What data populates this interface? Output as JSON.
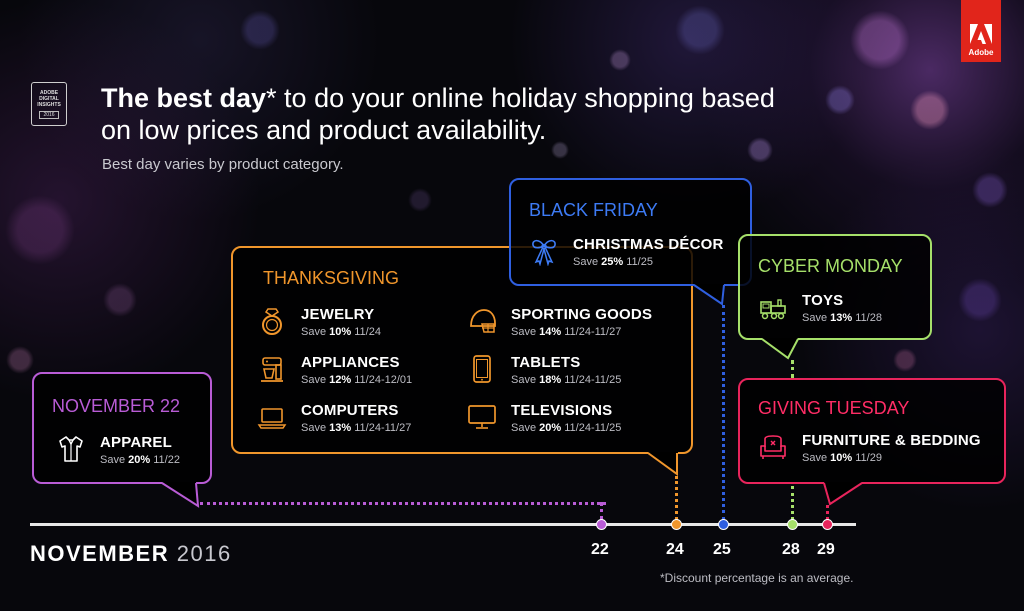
{
  "brand": {
    "logo_text": "Adobe",
    "accent": "#e1251b",
    "badge_lines": [
      "ADOBE",
      "DIGITAL",
      "INSIGHTS"
    ],
    "badge_year": "2016"
  },
  "headline": {
    "bold": "The best day",
    "rest_line1": "* to do your online holiday shopping based",
    "line2": "on low prices and product availability."
  },
  "subhead": "Best day varies by product category.",
  "callouts": {
    "november22": {
      "title": "NOVEMBER 22",
      "color": "#b95cd6",
      "items": [
        {
          "name": "APPAREL",
          "save_label": "Save",
          "pct": "20%",
          "dates": "11/22",
          "icon": "shirt-icon"
        }
      ]
    },
    "thanksgiving": {
      "title": "THANKSGIVING",
      "color": "#f0962c",
      "items": [
        {
          "name": "JEWELRY",
          "save_label": "Save",
          "pct": "10%",
          "dates": "11/24",
          "icon": "ring-icon"
        },
        {
          "name": "APPLIANCES",
          "save_label": "Save",
          "pct": "12%",
          "dates": "11/24-12/01",
          "icon": "mixer-icon"
        },
        {
          "name": "COMPUTERS",
          "save_label": "Save",
          "pct": "13%",
          "dates": "11/24-11/27",
          "icon": "laptop-icon"
        },
        {
          "name": "SPORTING GOODS",
          "save_label": "Save",
          "pct": "14%",
          "dates": "11/24-11/27",
          "icon": "helmet-icon"
        },
        {
          "name": "TABLETS",
          "save_label": "Save",
          "pct": "18%",
          "dates": "11/24-11/25",
          "icon": "tablet-icon"
        },
        {
          "name": "TELEVISIONS",
          "save_label": "Save",
          "pct": "20%",
          "dates": "11/24-11/25",
          "icon": "tv-icon"
        }
      ]
    },
    "black_friday": {
      "title": "BLACK FRIDAY",
      "color": "#2f5fe0",
      "items": [
        {
          "name": "CHRISTMAS DÉCOR",
          "save_label": "Save",
          "pct": "25%",
          "dates": "11/25",
          "icon": "bow-icon"
        }
      ]
    },
    "cyber_monday": {
      "title": "CYBER MONDAY",
      "color": "#a6e06a",
      "items": [
        {
          "name": "TOYS",
          "save_label": "Save",
          "pct": "13%",
          "dates": "11/28",
          "icon": "toy-train-icon"
        }
      ]
    },
    "giving_tuesday": {
      "title": "GIVING TUESDAY",
      "color": "#e8245c",
      "items": [
        {
          "name": "FURNITURE & BEDDING",
          "save_label": "Save",
          "pct": "10%",
          "dates": "11/29",
          "icon": "armchair-icon"
        }
      ]
    }
  },
  "timeline": {
    "month": "NOVEMBER",
    "year": "2016",
    "days": [
      {
        "label": "22",
        "color": "#b95cd6"
      },
      {
        "label": "24",
        "color": "#f0962c"
      },
      {
        "label": "25",
        "color": "#2f5fe0"
      },
      {
        "label": "28",
        "color": "#a6e06a"
      },
      {
        "label": "29",
        "color": "#e8245c"
      }
    ]
  },
  "footnote": "*Discount percentage is an average."
}
